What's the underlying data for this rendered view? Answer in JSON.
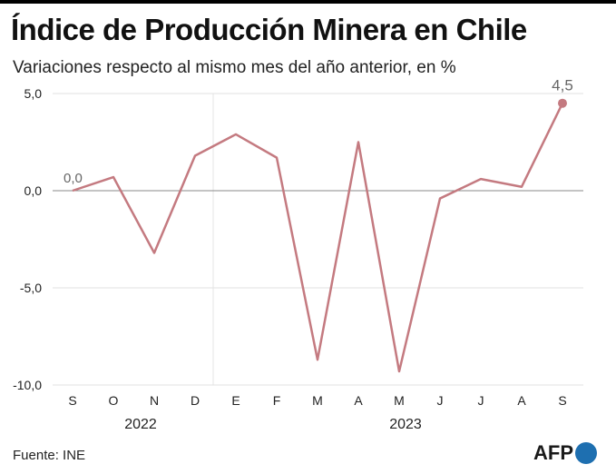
{
  "title": "Índice de Producción Minera en Chile",
  "subtitle": "Variaciones respecto al mismo mes del año anterior, en %",
  "source": "Fuente: INE",
  "logo": "AFP",
  "chart_data": {
    "type": "line",
    "categories": [
      "S",
      "O",
      "N",
      "D",
      "E",
      "F",
      "M",
      "A",
      "M",
      "J",
      "J",
      "A",
      "S"
    ],
    "years": [
      {
        "label": "2022"
      },
      {
        "label": "2023"
      }
    ],
    "series": [
      {
        "values": [
          0.0,
          0.7,
          -3.2,
          1.8,
          2.9,
          1.7,
          -8.7,
          2.5,
          -9.3,
          -0.4,
          0.6,
          0.2,
          4.5
        ]
      }
    ],
    "annotations": [
      {
        "index": 0,
        "text": "0,0"
      },
      {
        "index": 12,
        "text": "4,5"
      }
    ],
    "yticks": [
      {
        "value": 5,
        "label": "5,0"
      },
      {
        "value": 0,
        "label": "0,0"
      },
      {
        "value": -5,
        "label": "-5,0"
      },
      {
        "value": -10,
        "label": "-10,0"
      }
    ],
    "ylim": [
      -10,
      5
    ],
    "grid": true,
    "color": "#c47a80"
  }
}
